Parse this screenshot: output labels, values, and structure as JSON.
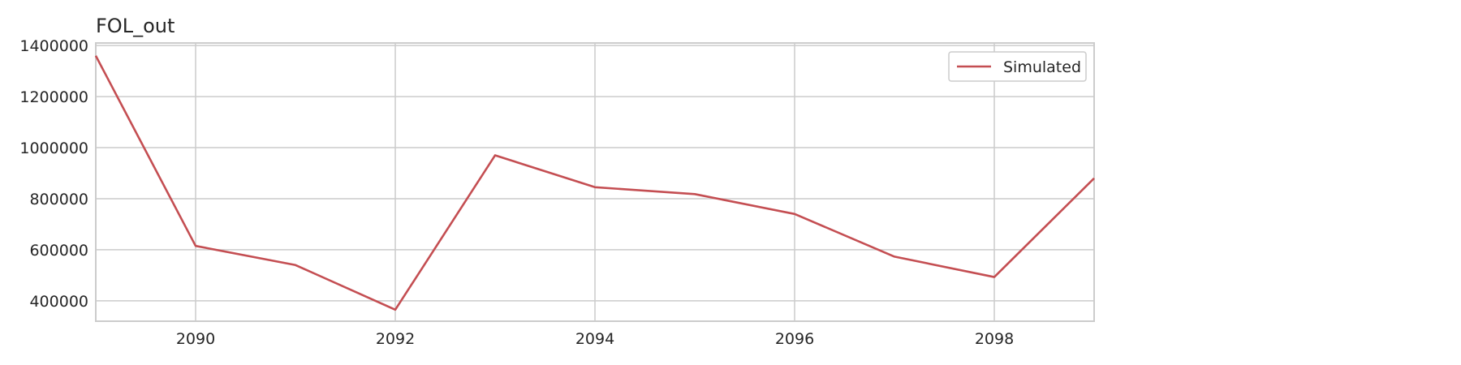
{
  "chart_data": {
    "type": "line",
    "title": "FOL_out",
    "xlabel": "",
    "ylabel": "",
    "x": [
      2089,
      2090,
      2091,
      2092,
      2093,
      2094,
      2095,
      2096,
      2097,
      2098,
      2099
    ],
    "series": [
      {
        "name": "Simulated",
        "color": "#c44e52",
        "values": [
          1360000,
          615000,
          540000,
          365000,
          970000,
          845000,
          818000,
          740000,
          573000,
          493000,
          880000
        ]
      }
    ],
    "xlim": [
      2089,
      2099
    ],
    "ylim": [
      320000,
      1410000
    ],
    "xticks": [
      2090,
      2092,
      2094,
      2096,
      2098
    ],
    "yticks": [
      400000,
      600000,
      800000,
      1000000,
      1200000,
      1400000
    ],
    "grid": true,
    "legend_position": "top-right"
  }
}
